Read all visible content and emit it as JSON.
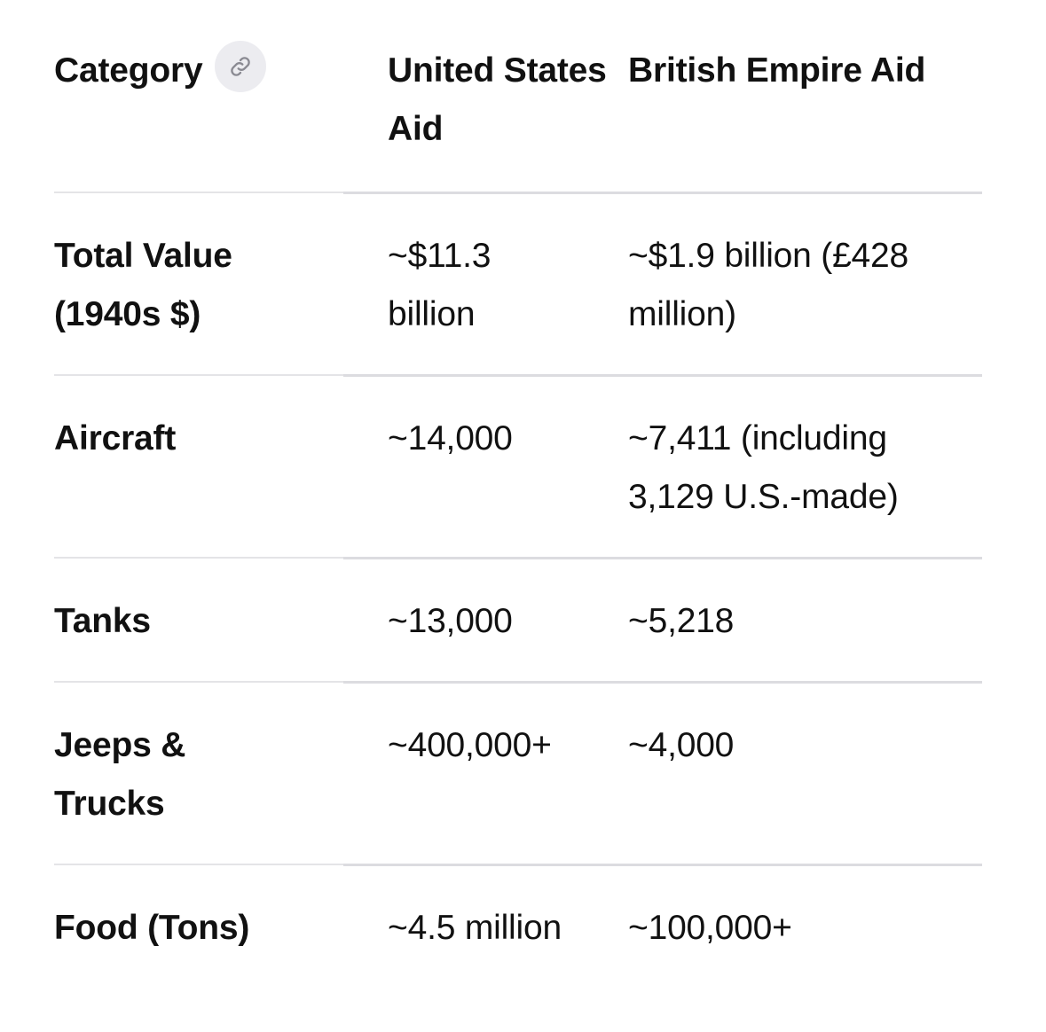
{
  "table": {
    "headers": {
      "category": "Category",
      "us_aid": "United States Aid",
      "british_aid": "British Empire Aid"
    },
    "link_icon": "link-icon",
    "rows": [
      {
        "category": "Total Value (1940s $)",
        "us_aid": "~$11.3 billion",
        "british_aid": "~$1.9 billion (£428 million)"
      },
      {
        "category": "Aircraft",
        "us_aid": "~14,000",
        "british_aid": "~7,411 (including 3,129 U.S.-made)"
      },
      {
        "category": "Tanks",
        "us_aid": "~13,000",
        "british_aid": "~5,218"
      },
      {
        "category": "Jeeps & Trucks",
        "us_aid": "~400,000+",
        "british_aid": "~4,000"
      },
      {
        "category": "Food (Tons)",
        "us_aid": "~4.5 million",
        "british_aid": "~100,000+"
      }
    ]
  }
}
